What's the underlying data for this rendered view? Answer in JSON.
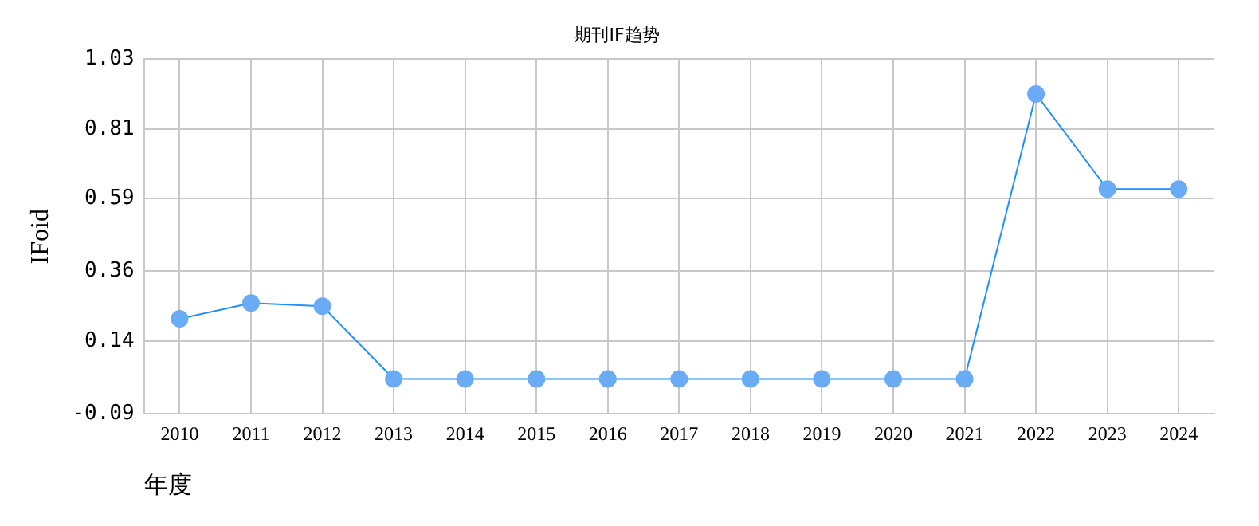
{
  "chart_data": {
    "type": "line",
    "title": "期刊IF趋势",
    "xlabel": "年度",
    "ylabel": "IFoid",
    "categories": [
      "2010",
      "2011",
      "2012",
      "2013",
      "2014",
      "2015",
      "2016",
      "2017",
      "2018",
      "2019",
      "2020",
      "2021",
      "2022",
      "2023",
      "2024"
    ],
    "series": [
      {
        "color": "#1e90ff",
        "values": [
          0.21,
          0.26,
          0.25,
          0.02,
          0.02,
          0.02,
          0.02,
          0.02,
          0.02,
          0.02,
          0.02,
          0.02,
          0.92,
          0.62,
          0.62
        ]
      }
    ],
    "ylim": [
      -0.09,
      1.03
    ],
    "yticks": [
      -0.09,
      0.14,
      0.36,
      0.59,
      0.81,
      1.03
    ],
    "grid": true,
    "marker": "circle",
    "legend": false
  }
}
